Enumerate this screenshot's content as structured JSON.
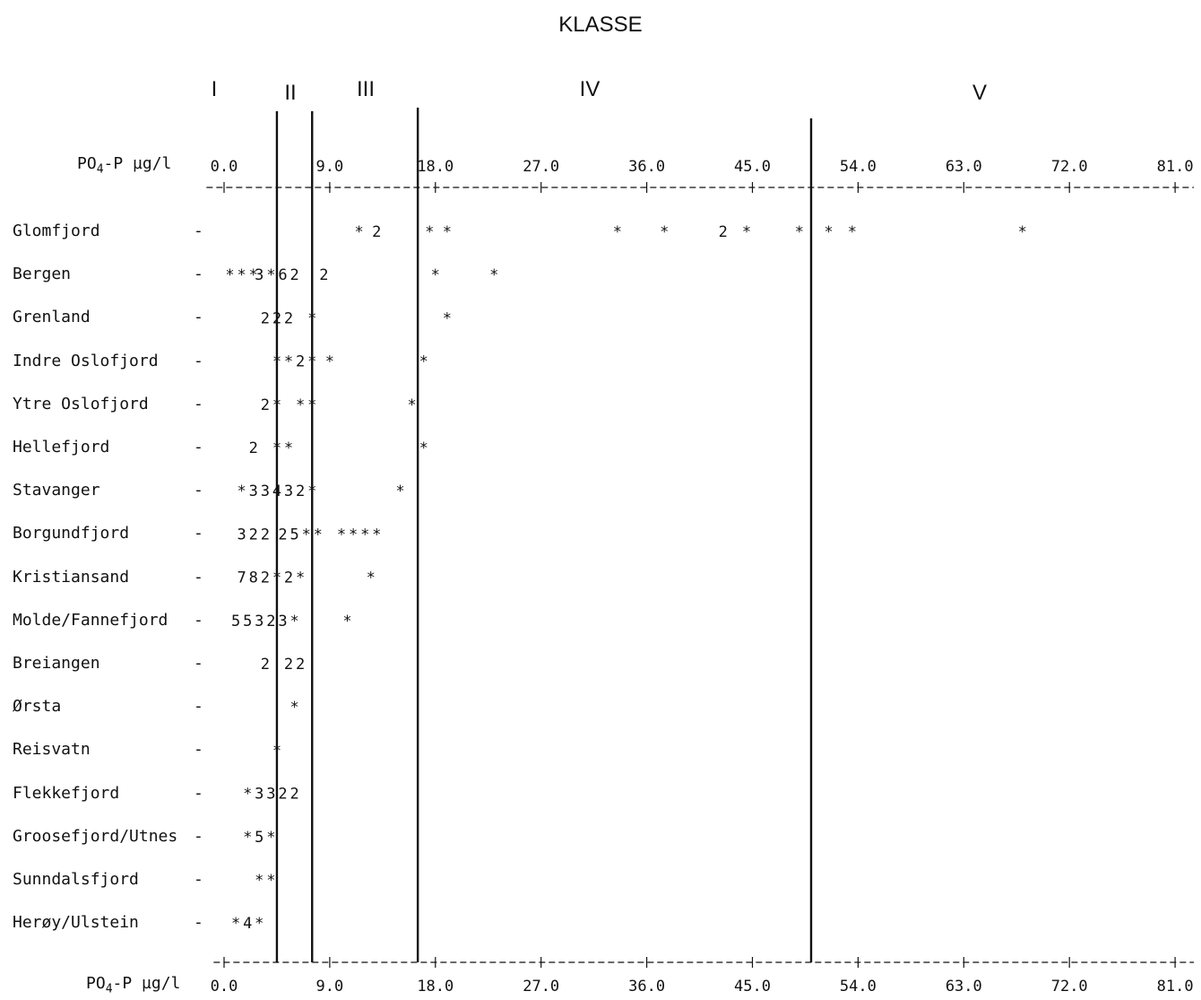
{
  "title": "KLASSE",
  "classes": [
    "I",
    "II",
    "III",
    "IV",
    "V"
  ],
  "axis": {
    "label_base": "PO",
    "label_sub": "4",
    "label_rest": "-P µg/l"
  },
  "chart_data": {
    "type": "scatter",
    "title": "KLASSE",
    "xlabel": "PO4-P µg/l",
    "xlim": [
      -1.5,
      82
    ],
    "xticks": [
      "0.0",
      "9.0",
      "18.0",
      "27.0",
      "36.0",
      "45.0",
      "54.0",
      "63.0",
      "72.0",
      "81.0"
    ],
    "class_labels": [
      "I",
      "II",
      "III",
      "IV",
      "V"
    ],
    "class_boundaries": [
      4.5,
      7.5,
      16.5,
      50.0
    ],
    "grid": false,
    "series": [
      {
        "name": "Glomfjord",
        "points": [
          {
            "x": 11.5,
            "mark": "*"
          },
          {
            "x": 13.0,
            "mark": "2"
          },
          {
            "x": 17.5,
            "mark": "*"
          },
          {
            "x": 19.0,
            "mark": "*"
          },
          {
            "x": 33.5,
            "mark": "*"
          },
          {
            "x": 37.5,
            "mark": "*"
          },
          {
            "x": 42.5,
            "mark": "2"
          },
          {
            "x": 44.5,
            "mark": "*"
          },
          {
            "x": 49.0,
            "mark": "*"
          },
          {
            "x": 51.5,
            "mark": "*"
          },
          {
            "x": 53.5,
            "mark": "*"
          },
          {
            "x": 68.0,
            "mark": "*"
          }
        ]
      },
      {
        "name": "Bergen",
        "points": [
          {
            "x": 0.5,
            "mark": "*"
          },
          {
            "x": 1.5,
            "mark": "*"
          },
          {
            "x": 2.5,
            "mark": "*"
          },
          {
            "x": 3.0,
            "mark": "3"
          },
          {
            "x": 4.0,
            "mark": "*"
          },
          {
            "x": 5.0,
            "mark": "6"
          },
          {
            "x": 6.0,
            "mark": "2"
          },
          {
            "x": 8.5,
            "mark": "2"
          },
          {
            "x": 18.0,
            "mark": "*"
          },
          {
            "x": 23.0,
            "mark": "*"
          }
        ]
      },
      {
        "name": "Grenland",
        "points": [
          {
            "x": 3.5,
            "mark": "2"
          },
          {
            "x": 4.5,
            "mark": "2"
          },
          {
            "x": 5.5,
            "mark": "2"
          },
          {
            "x": 7.5,
            "mark": "*"
          },
          {
            "x": 19.0,
            "mark": "*"
          }
        ]
      },
      {
        "name": "Indre Oslofjord",
        "points": [
          {
            "x": 4.5,
            "mark": "*"
          },
          {
            "x": 5.5,
            "mark": "*"
          },
          {
            "x": 6.5,
            "mark": "2"
          },
          {
            "x": 7.5,
            "mark": "*"
          },
          {
            "x": 9.0,
            "mark": "*"
          },
          {
            "x": 17.0,
            "mark": "*"
          }
        ]
      },
      {
        "name": "Ytre Oslofjord",
        "points": [
          {
            "x": 3.5,
            "mark": "2"
          },
          {
            "x": 4.5,
            "mark": "*"
          },
          {
            "x": 6.5,
            "mark": "*"
          },
          {
            "x": 7.5,
            "mark": "*"
          },
          {
            "x": 16.0,
            "mark": "*"
          }
        ]
      },
      {
        "name": "Hellefjord",
        "points": [
          {
            "x": 2.5,
            "mark": "2"
          },
          {
            "x": 4.5,
            "mark": "*"
          },
          {
            "x": 5.5,
            "mark": "*"
          },
          {
            "x": 17.0,
            "mark": "*"
          }
        ]
      },
      {
        "name": "Stavanger",
        "points": [
          {
            "x": 1.5,
            "mark": "*"
          },
          {
            "x": 2.5,
            "mark": "3"
          },
          {
            "x": 3.5,
            "mark": "3"
          },
          {
            "x": 4.5,
            "mark": "4"
          },
          {
            "x": 5.5,
            "mark": "3"
          },
          {
            "x": 6.5,
            "mark": "2"
          },
          {
            "x": 7.5,
            "mark": "*"
          },
          {
            "x": 15.0,
            "mark": "*"
          }
        ]
      },
      {
        "name": "Borgundfjord",
        "points": [
          {
            "x": 1.5,
            "mark": "3"
          },
          {
            "x": 2.5,
            "mark": "2"
          },
          {
            "x": 3.5,
            "mark": "2"
          },
          {
            "x": 5.0,
            "mark": "2"
          },
          {
            "x": 6.0,
            "mark": "5"
          },
          {
            "x": 7.0,
            "mark": "*"
          },
          {
            "x": 8.0,
            "mark": "*"
          },
          {
            "x": 10.0,
            "mark": "*"
          },
          {
            "x": 11.0,
            "mark": "*"
          },
          {
            "x": 12.0,
            "mark": "*"
          },
          {
            "x": 13.0,
            "mark": "*"
          }
        ]
      },
      {
        "name": "Kristiansand",
        "points": [
          {
            "x": 1.5,
            "mark": "7"
          },
          {
            "x": 2.5,
            "mark": "8"
          },
          {
            "x": 3.5,
            "mark": "2"
          },
          {
            "x": 4.5,
            "mark": "*"
          },
          {
            "x": 5.5,
            "mark": "2"
          },
          {
            "x": 6.5,
            "mark": "*"
          },
          {
            "x": 12.5,
            "mark": "*"
          }
        ]
      },
      {
        "name": "Molde/Fannefjord",
        "points": [
          {
            "x": 1.0,
            "mark": "5"
          },
          {
            "x": 2.0,
            "mark": "5"
          },
          {
            "x": 3.0,
            "mark": "3"
          },
          {
            "x": 4.0,
            "mark": "2"
          },
          {
            "x": 5.0,
            "mark": "3"
          },
          {
            "x": 6.0,
            "mark": "*"
          },
          {
            "x": 10.5,
            "mark": "*"
          }
        ]
      },
      {
        "name": "Breiangen",
        "points": [
          {
            "x": 3.5,
            "mark": "2"
          },
          {
            "x": 5.5,
            "mark": "2"
          },
          {
            "x": 6.5,
            "mark": "2"
          }
        ]
      },
      {
        "name": "Ørsta",
        "points": [
          {
            "x": 6.0,
            "mark": "*"
          }
        ]
      },
      {
        "name": "Reisvatn",
        "points": [
          {
            "x": 4.5,
            "mark": "*"
          }
        ]
      },
      {
        "name": "Flekkefjord",
        "points": [
          {
            "x": 2.0,
            "mark": "*"
          },
          {
            "x": 3.0,
            "mark": "3"
          },
          {
            "x": 4.0,
            "mark": "3"
          },
          {
            "x": 5.0,
            "mark": "2"
          },
          {
            "x": 6.0,
            "mark": "2"
          }
        ]
      },
      {
        "name": "Groosefjord/Utnes",
        "points": [
          {
            "x": 2.0,
            "mark": "*"
          },
          {
            "x": 3.0,
            "mark": "5"
          },
          {
            "x": 4.0,
            "mark": "*"
          }
        ]
      },
      {
        "name": "Sunndalsfjord",
        "points": [
          {
            "x": 3.0,
            "mark": "*"
          },
          {
            "x": 4.0,
            "mark": "*"
          }
        ]
      },
      {
        "name": "Herøy/Ulstein",
        "points": [
          {
            "x": 1.0,
            "mark": "*"
          },
          {
            "x": 2.0,
            "mark": "4"
          },
          {
            "x": 3.0,
            "mark": "*"
          }
        ]
      }
    ]
  }
}
